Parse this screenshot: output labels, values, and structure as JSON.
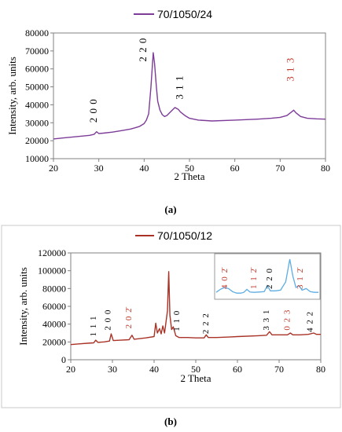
{
  "chart_data": [
    {
      "panel_label": "(a)",
      "type": "line",
      "legend": "70/1050/24",
      "xlabel": "2 Theta",
      "ylabel": "Intensity, arb. units",
      "xlim": [
        20,
        80
      ],
      "ylim": [
        10000,
        80000
      ],
      "x_ticks": [
        20,
        30,
        40,
        50,
        60,
        70,
        80
      ],
      "y_ticks": [
        10000,
        20000,
        30000,
        40000,
        50000,
        60000,
        70000,
        80000
      ],
      "colors": {
        "series": "#7d3c98",
        "axes": "#808080"
      },
      "series": [
        {
          "name": "70/1050/24",
          "x": [
            20,
            22,
            24,
            26,
            28,
            29,
            29.5,
            30,
            31,
            33,
            35,
            37,
            38,
            39,
            40,
            40.5,
            41,
            41.5,
            42,
            42.3,
            42.7,
            43,
            43.5,
            44,
            44.5,
            45,
            46,
            46.8,
            47.5,
            48,
            49,
            50,
            52,
            55,
            60,
            65,
            68,
            70,
            71.5,
            72.5,
            73,
            73.5,
            74.5,
            76,
            78,
            80
          ],
          "y": [
            21000,
            21500,
            22000,
            22500,
            23000,
            23600,
            25000,
            24000,
            24200,
            24800,
            25600,
            26500,
            27200,
            28000,
            29500,
            31500,
            35000,
            50000,
            69000,
            63000,
            50000,
            42000,
            37000,
            34500,
            33500,
            34000,
            36500,
            38500,
            37500,
            36000,
            34000,
            32500,
            31500,
            31000,
            31500,
            32000,
            32500,
            33000,
            34000,
            36000,
            37000,
            35500,
            33500,
            32500,
            32200,
            32000
          ]
        }
      ],
      "annotations": [
        {
          "text": "2 0 0",
          "x": 29.5,
          "y": 30000,
          "color": "#000000"
        },
        {
          "text": "2 2 0",
          "x": 40.5,
          "y": 64000,
          "color": "#000000"
        },
        {
          "text": "3 1 1",
          "x": 48.5,
          "y": 43000,
          "color": "#000000"
        },
        {
          "text": "3 1 3",
          "x": 73,
          "y": 53000,
          "color": "#c0392b"
        }
      ]
    },
    {
      "panel_label": "(b)",
      "type": "line",
      "legend": "70/1050/12",
      "xlabel": "2 Theta",
      "ylabel": "Intensity, arb. units",
      "xlim": [
        20,
        80
      ],
      "ylim": [
        0,
        120000
      ],
      "x_ticks": [
        20,
        30,
        40,
        50,
        60,
        70,
        80
      ],
      "y_ticks": [
        0,
        20000,
        40000,
        60000,
        80000,
        100000,
        120000
      ],
      "colors": {
        "series": "#a93226",
        "inset": "#5dade2",
        "axes": "#808080"
      },
      "series": [
        {
          "name": "70/1050/12",
          "x": [
            20,
            22,
            24,
            25.5,
            26,
            26.5,
            28,
            29.3,
            29.7,
            30.2,
            32,
            34,
            34.7,
            35.2,
            36,
            38,
            40,
            40.4,
            40.8,
            41.3,
            41.7,
            42.1,
            42.5,
            43.2,
            43.5,
            43.8,
            44.2,
            44.6,
            45.2,
            46,
            48,
            50,
            52,
            52.5,
            53,
            55,
            58,
            60,
            65,
            67,
            67.7,
            68.3,
            70,
            72,
            72.7,
            73.3,
            75,
            77,
            78.3,
            79,
            80
          ],
          "y": [
            17000,
            17800,
            18500,
            19000,
            22000,
            19500,
            20000,
            21000,
            29000,
            21500,
            22000,
            22500,
            27500,
            23000,
            23500,
            24500,
            26000,
            41000,
            30000,
            35000,
            29000,
            38000,
            30000,
            55000,
            99000,
            50000,
            34000,
            37000,
            27000,
            25000,
            25000,
            24500,
            24500,
            28000,
            25000,
            25000,
            25500,
            26000,
            27000,
            27500,
            31500,
            28000,
            28000,
            28000,
            30000,
            28000,
            28000,
            28500,
            30000,
            28500,
            28500
          ]
        }
      ],
      "annotations": [
        {
          "text": "1 1 1",
          "x": 26,
          "y": 26000,
          "color": "#000000"
        },
        {
          "text": "2 0 0",
          "x": 29.5,
          "y": 33000,
          "color": "#000000"
        },
        {
          "text": "2 0 2̄",
          "x": 34.5,
          "y": 35000,
          "color": "#c0392b"
        },
        {
          "text": "1 1 0",
          "x": 46,
          "y": 32000,
          "color": "#000000"
        },
        {
          "text": "2 2 2",
          "x": 53,
          "y": 29000,
          "color": "#000000"
        },
        {
          "text": "3 3 1",
          "x": 67.5,
          "y": 33000,
          "color": "#000000"
        },
        {
          "text": "0 2 3",
          "x": 72.5,
          "y": 33000,
          "color": "#c0392b"
        },
        {
          "text": "4 2 2",
          "x": 78,
          "y": 31000,
          "color": "#000000"
        }
      ],
      "inset": {
        "labels": [
          {
            "text": "4 0 2̄",
            "color": "#c0392b"
          },
          {
            "text": "1 1 2̄",
            "color": "#c0392b"
          },
          {
            "text": "2 2 0",
            "color": "#000000"
          },
          {
            "text": "3 1 2̄",
            "color": "#c0392b"
          }
        ],
        "x": [
          0,
          4,
          8,
          12,
          16,
          20,
          24,
          27,
          30,
          33,
          37,
          42,
          47,
          50,
          53,
          58,
          63,
          68,
          72,
          75,
          78,
          81,
          84,
          88,
          92,
          96,
          100
        ],
        "y": [
          0.12,
          0.2,
          0.25,
          0.22,
          0.14,
          0.1,
          0.1,
          0.12,
          0.2,
          0.13,
          0.12,
          0.13,
          0.14,
          0.3,
          0.16,
          0.16,
          0.18,
          0.4,
          1.0,
          0.55,
          0.25,
          0.3,
          0.18,
          0.22,
          0.14,
          0.12,
          0.12
        ]
      }
    }
  ]
}
